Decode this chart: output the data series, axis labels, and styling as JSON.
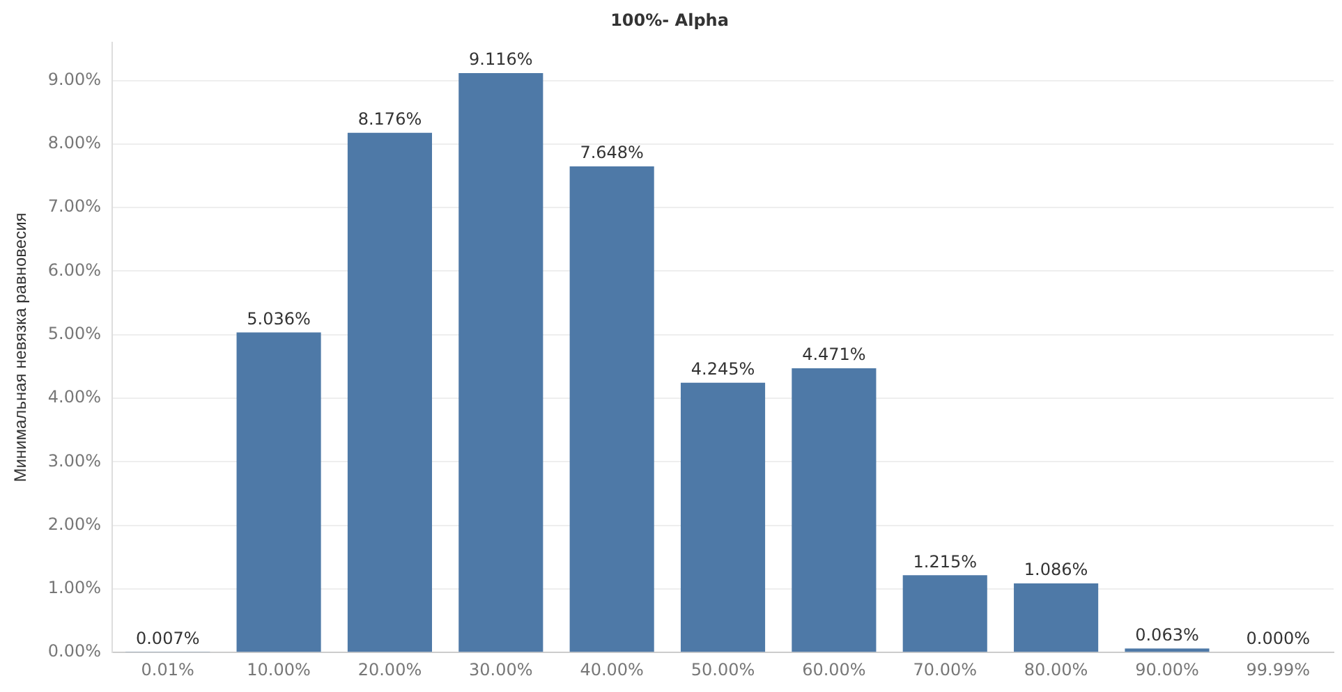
{
  "chart_data": {
    "type": "bar",
    "title": "100%- Alpha",
    "ylabel": "Минимальная невязка равновесия",
    "categories": [
      "0.01%",
      "10.00%",
      "20.00%",
      "30.00%",
      "40.00%",
      "50.00%",
      "60.00%",
      "70.00%",
      "80.00%",
      "90.00%",
      "99.99%"
    ],
    "values": [
      0.007,
      5.036,
      8.176,
      9.116,
      7.648,
      4.245,
      4.471,
      1.215,
      1.086,
      0.063,
      0.0
    ],
    "value_labels": [
      "0.007%",
      "5.036%",
      "8.176%",
      "9.116%",
      "7.648%",
      "4.245%",
      "4.471%",
      "1.215%",
      "1.086%",
      "0.063%",
      "0.000%"
    ],
    "color": "#4e79a7",
    "ylim": [
      0,
      9.6
    ],
    "yticks": [
      {
        "value": 0,
        "label": "0.00%"
      },
      {
        "value": 1,
        "label": "1.00%"
      },
      {
        "value": 2,
        "label": "2.00%"
      },
      {
        "value": 3,
        "label": "3.00%"
      },
      {
        "value": 4,
        "label": "4.00%"
      },
      {
        "value": 5,
        "label": "5.00%"
      },
      {
        "value": 6,
        "label": "6.00%"
      },
      {
        "value": 7,
        "label": "7.00%"
      },
      {
        "value": 8,
        "label": "8.00%"
      },
      {
        "value": 9,
        "label": "9.00%"
      }
    ],
    "grid": "y",
    "legend": false
  }
}
